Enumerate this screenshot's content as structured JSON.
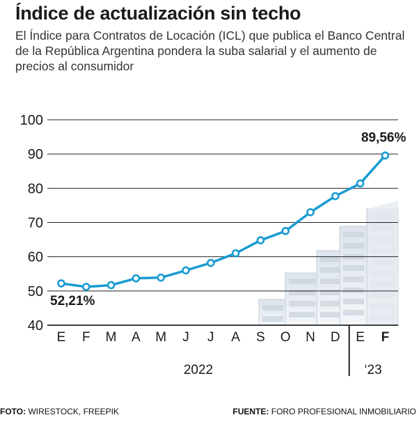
{
  "header": {
    "title": "Índice de actualización sin techo",
    "subtitle": "El Índice para Contratos de Locación (ICL) que publica el Banco Central de la República Argentina pondera la suba salarial y el aumento de precios al consumidor"
  },
  "footer": {
    "photo_label": "FOTO:",
    "photo_credit": "WIRESTOCK, FREEPIK",
    "source_label": "FUENTE:",
    "source_credit": "FORO PROFESIONAL INMOBILIARIO"
  },
  "colors": {
    "line": "#1a9bd1",
    "grid": "#222222",
    "text": "#1a1a1a"
  },
  "chart_data": {
    "type": "line",
    "title": "Índice de actualización sin techo",
    "categories": [
      "E",
      "F",
      "M",
      "A",
      "M",
      "J",
      "J",
      "A",
      "S",
      "O",
      "N",
      "D",
      "E",
      "F"
    ],
    "series": [
      {
        "name": "ICL",
        "values": [
          52.21,
          51.2,
          51.7,
          53.7,
          53.9,
          56.0,
          58.2,
          61.0,
          64.8,
          67.5,
          73.0,
          77.7,
          81.4,
          89.56
        ]
      }
    ],
    "yticks": [
      40,
      50,
      60,
      70,
      80,
      90,
      100
    ],
    "ylim": [
      40,
      100
    ],
    "annotations": {
      "first": "52,21%",
      "last": "89,56%"
    },
    "year_labels": {
      "first": "2022",
      "second": "‘23"
    }
  }
}
